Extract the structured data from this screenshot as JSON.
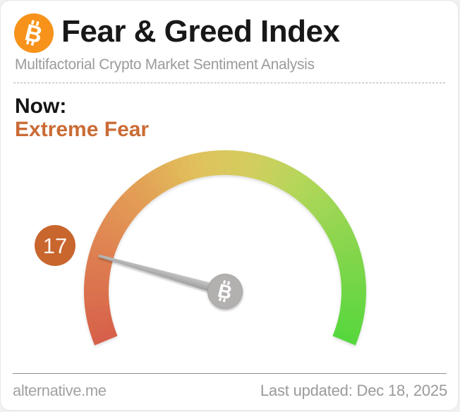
{
  "widget": {
    "title": "Fear & Greed Index",
    "subtitle": "Multifactorial Crypto Market Sentiment Analysis"
  },
  "header": {
    "logo_icon": "bitcoin-icon",
    "logo_symbol": "B",
    "brand_color": "#f7931a"
  },
  "now": {
    "label": "Now:",
    "classification": "Extreme Fear",
    "classification_color": "#ca6b35"
  },
  "chart_data": {
    "type": "gauge",
    "title": "Fear & Greed Index",
    "value": 17,
    "min": 0,
    "max": 100,
    "classification": "Extreme Fear",
    "start_angle_deg": 202.5,
    "end_angle_deg": -22.5,
    "badge_color": "#c8662e",
    "badge_text_color": "#fdf7f2",
    "needle_color_light": "#c9c9c9",
    "needle_color_dark": "#9c9c9c",
    "hub_coin_color": "#b3b0b0",
    "hub_coin_rim_color": "#a5a2a2",
    "hub_symbol": "B",
    "gradient_stops": [
      {
        "value": 0,
        "color": "#d6604b"
      },
      {
        "value": 15,
        "color": "#dd7b50"
      },
      {
        "value": 30,
        "color": "#e39b55"
      },
      {
        "value": 45,
        "color": "#e0c25c"
      },
      {
        "value": 55,
        "color": "#d3cd5e"
      },
      {
        "value": 65,
        "color": "#b5d65a"
      },
      {
        "value": 80,
        "color": "#8ad64e"
      },
      {
        "value": 100,
        "color": "#55d73c"
      }
    ],
    "legend": "none",
    "tick_labels": "none"
  },
  "footer": {
    "source": "alternative.me",
    "last_updated": "Last updated: Dec 18, 2025"
  }
}
